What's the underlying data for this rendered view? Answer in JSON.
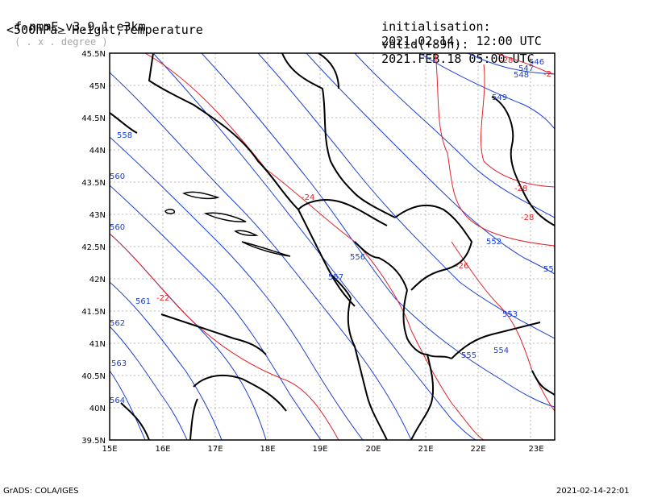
{
  "header": {
    "model": "f-nmmE_v3.9.1-e3km",
    "projection": "( . x . degree )",
    "level_field": "<500hPa> Height,Temperature",
    "init_label": "initialisation:",
    "init_value": "2021.02.14.  12:00 UTC",
    "valid_label": "valid(+89h):",
    "valid_value": "2021.FEB.18 05:00 UTC"
  },
  "footer": {
    "credit": "GrADS: COLA/IGES",
    "timestamp": "2021-02-14-22:01"
  },
  "axes": {
    "lon_labels": [
      "15E",
      "16E",
      "17E",
      "18E",
      "19E",
      "20E",
      "21E",
      "22E",
      "23E"
    ],
    "lat_labels": [
      "45.5N",
      "45N",
      "44.5N",
      "44N",
      "43.5N",
      "43N",
      "42.5N",
      "42N",
      "41.5N",
      "41N",
      "40.5N",
      "40N",
      "39.5N"
    ]
  },
  "contours": {
    "height_color": "#1a3fd6",
    "temperature_color": "#e0232a",
    "coast_color": "#000000",
    "height_labels": [
      "546",
      "547",
      "548",
      "549",
      "552",
      "555",
      "558",
      "560",
      "560",
      "561",
      "562",
      "563",
      "564",
      "556",
      "557",
      "553",
      "554",
      "555",
      "55"
    ],
    "temperature_labels": [
      "-28",
      "-2",
      "-24",
      "-28",
      "-28",
      "-26",
      "-22"
    ]
  }
}
